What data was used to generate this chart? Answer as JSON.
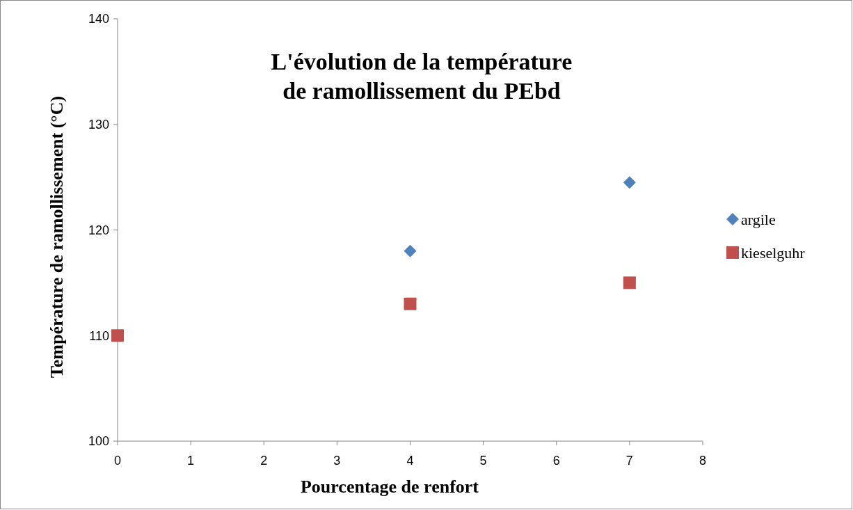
{
  "chart_data": {
    "type": "scatter",
    "title": "L'évolution de la température\nde ramollissement du PEbd",
    "xlabel": "Pourcentage de renfort",
    "ylabel": "Température de ramollissement (°C)",
    "xlim": [
      0,
      8
    ],
    "xticks": [
      0,
      1,
      2,
      3,
      4,
      5,
      6,
      7,
      8
    ],
    "ylim": [
      100,
      140
    ],
    "yticks": [
      100,
      110,
      120,
      130,
      140
    ],
    "grid": false,
    "legend": "right",
    "series": [
      {
        "name": "argile",
        "color": "#4f81bd",
        "marker": "diamond",
        "x": [
          4,
          7
        ],
        "values": [
          118,
          124.5
        ]
      },
      {
        "name": "kieselguhr",
        "color": "#c0504d",
        "marker": "square",
        "x": [
          0,
          4,
          7
        ],
        "values": [
          110,
          113,
          115
        ]
      }
    ]
  }
}
